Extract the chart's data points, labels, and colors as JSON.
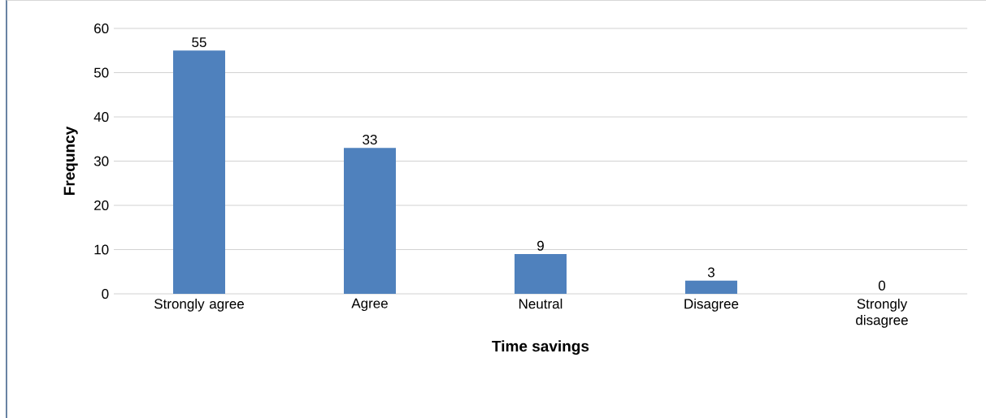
{
  "chart_data": {
    "type": "bar",
    "xlabel": "Time savings",
    "ylabel": "Frequncy",
    "categories": [
      "Strongly agree",
      "Agree",
      "Neutral",
      "Disagree",
      "Strongly disagree"
    ],
    "values": [
      55,
      33,
      9,
      3,
      0
    ],
    "color": "#4f81bd",
    "ylim": [
      0,
      60
    ],
    "yticks": [
      0,
      10,
      20,
      30,
      40,
      50,
      60
    ],
    "grid": "y",
    "data_labels": true
  }
}
